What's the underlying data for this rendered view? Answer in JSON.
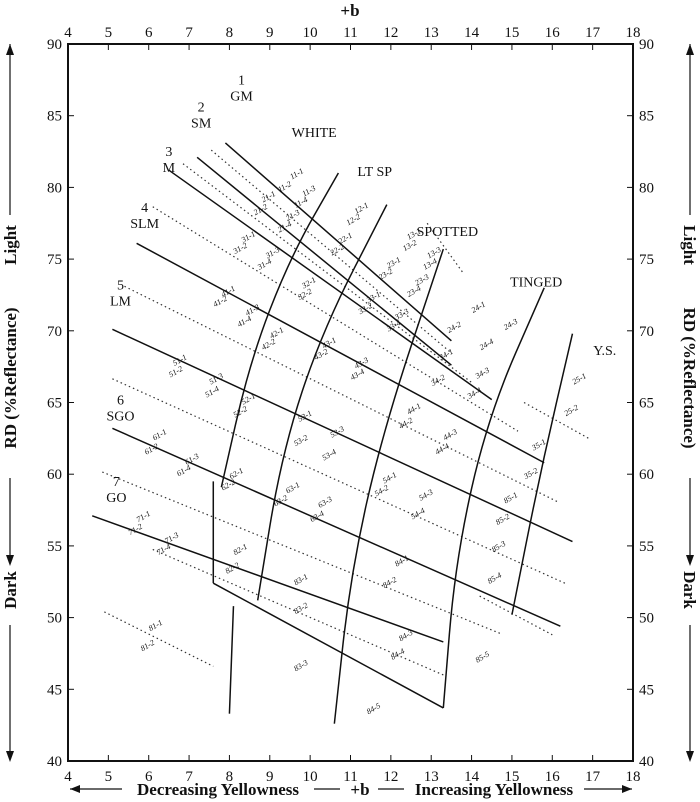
{
  "chart_data": {
    "type": "diagram",
    "axis_titles": {
      "top": "+b",
      "bottom_left": "Decreasing Yellowness",
      "bottom_center": "+b",
      "bottom_right": "Increasing Yellowness",
      "left_center": "RD (%Reflectance)",
      "left_top": "Light",
      "left_bottom": "Dark",
      "right_center": "RD (%Reflectance)",
      "right_top": "Light",
      "right_bottom": "Dark"
    },
    "x_ticks": [
      "4",
      "5",
      "6",
      "7",
      "8",
      "9",
      "10",
      "11",
      "12",
      "13",
      "14",
      "15",
      "16",
      "17",
      "18"
    ],
    "y_ticks": [
      "40",
      "45",
      "50",
      "55",
      "60",
      "65",
      "70",
      "75",
      "80",
      "85",
      "90"
    ],
    "xlim": [
      4,
      18
    ],
    "ylim": [
      40,
      90
    ],
    "grade_labels": [
      {
        "num": "1",
        "abbr": "GM",
        "x": 8.3,
        "y": 86.2
      },
      {
        "num": "2",
        "abbr": "SM",
        "x": 7.3,
        "y": 84.3
      },
      {
        "num": "3",
        "abbr": "M",
        "x": 6.5,
        "y": 81.2
      },
      {
        "num": "4",
        "abbr": "SLM",
        "x": 5.9,
        "y": 77.3
      },
      {
        "num": "5",
        "abbr": "LM",
        "x": 5.3,
        "y": 71.9
      },
      {
        "num": "6",
        "abbr": "SGO",
        "x": 5.3,
        "y": 63.9
      },
      {
        "num": "7",
        "abbr": "GO",
        "x": 5.2,
        "y": 58.2
      }
    ],
    "color_labels": [
      {
        "text": "WHITE",
        "x": 10.1,
        "y": 83.5
      },
      {
        "text": "LT SP",
        "x": 11.6,
        "y": 80.8
      },
      {
        "text": "SPOTTED",
        "x": 13.4,
        "y": 76.6
      },
      {
        "text": "TINGED",
        "x": 15.6,
        "y": 73.1
      },
      {
        "text": "Y.S.",
        "x": 17.3,
        "y": 68.3
      }
    ],
    "grade_boundaries": [
      {
        "name": "GM-SM",
        "points": [
          [
            7.9,
            83.1
          ],
          [
            13.5,
            69.3
          ]
        ]
      },
      {
        "name": "SM-M",
        "points": [
          [
            7.2,
            82.1
          ],
          [
            13.5,
            67.6
          ]
        ]
      },
      {
        "name": "M-SLM",
        "points": [
          [
            6.5,
            81.2
          ],
          [
            14.5,
            65.2
          ]
        ]
      },
      {
        "name": "SLM-LM",
        "points": [
          [
            5.7,
            76.1
          ],
          [
            15.8,
            60.8
          ]
        ]
      },
      {
        "name": "LM-SGO",
        "points": [
          [
            5.1,
            70.1
          ],
          [
            16.5,
            55.3
          ]
        ]
      },
      {
        "name": "SGO-GO",
        "points": [
          [
            5.1,
            63.2
          ],
          [
            16.2,
            49.4
          ]
        ]
      },
      {
        "name": "GO-below",
        "points": [
          [
            4.6,
            57.1
          ],
          [
            13.3,
            48.3
          ]
        ]
      },
      {
        "name": "bottom",
        "points": [
          [
            7.6,
            52.4
          ],
          [
            13.3,
            43.7
          ]
        ]
      }
    ],
    "color_boundaries": [
      {
        "name": "WHITE-LT SP",
        "points": [
          [
            7.8,
            59.1
          ],
          [
            8.5,
            67.8
          ],
          [
            9.5,
            75.1
          ],
          [
            10.7,
            81.0
          ]
        ]
      },
      {
        "name": "LT SP-SPOTTED",
        "points": [
          [
            8.7,
            51.2
          ],
          [
            9.3,
            61.5
          ],
          [
            10.3,
            70.0
          ],
          [
            11.9,
            78.8
          ]
        ]
      },
      {
        "name": "SPOTTED-TINGED",
        "points": [
          [
            10.6,
            42.6
          ],
          [
            11.0,
            53.0
          ],
          [
            11.8,
            63.0
          ],
          [
            13.3,
            75.7
          ]
        ]
      },
      {
        "name": "TINGED-Y.S.",
        "points": [
          [
            13.3,
            43.7
          ],
          [
            13.6,
            54.0
          ],
          [
            14.4,
            64.0
          ],
          [
            15.8,
            73.0
          ]
        ]
      },
      {
        "name": "Y.S.-outer",
        "points": [
          [
            15.0,
            50.2
          ],
          [
            15.7,
            60.1
          ],
          [
            16.5,
            69.8
          ]
        ]
      },
      {
        "name": "GM-left-a",
        "points": [
          [
            7.6,
            52.4
          ],
          [
            7.6,
            59.5
          ]
        ]
      },
      {
        "name": "GO-left-a",
        "points": [
          [
            8.0,
            43.3
          ],
          [
            8.1,
            50.8
          ]
        ]
      }
    ],
    "grade_codes": [
      {
        "code": "11-1",
        "x": 9.7,
        "y": 80.8
      },
      {
        "code": "11-2",
        "x": 9.4,
        "y": 79.9
      },
      {
        "code": "11-3",
        "x": 10.0,
        "y": 79.6
      },
      {
        "code": "11-4",
        "x": 9.8,
        "y": 78.8
      },
      {
        "code": "21-1",
        "x": 9.0,
        "y": 79.2
      },
      {
        "code": "21-2",
        "x": 8.8,
        "y": 78.3
      },
      {
        "code": "21-3",
        "x": 9.6,
        "y": 77.9
      },
      {
        "code": "21-4",
        "x": 9.4,
        "y": 77.1
      },
      {
        "code": "31-1",
        "x": 8.5,
        "y": 76.4
      },
      {
        "code": "31-2",
        "x": 8.3,
        "y": 75.6
      },
      {
        "code": "31-3",
        "x": 9.1,
        "y": 75.3
      },
      {
        "code": "31-4",
        "x": 8.9,
        "y": 74.5
      },
      {
        "code": "41-1",
        "x": 8.0,
        "y": 72.6
      },
      {
        "code": "41-2",
        "x": 7.8,
        "y": 71.9
      },
      {
        "code": "41-3",
        "x": 8.6,
        "y": 71.3
      },
      {
        "code": "41-4",
        "x": 8.4,
        "y": 70.5
      },
      {
        "code": "51-1",
        "x": 6.8,
        "y": 67.8
      },
      {
        "code": "51-2",
        "x": 6.7,
        "y": 67.0
      },
      {
        "code": "51-3",
        "x": 7.7,
        "y": 66.5
      },
      {
        "code": "51-4",
        "x": 7.6,
        "y": 65.6
      },
      {
        "code": "61-1",
        "x": 6.3,
        "y": 62.6
      },
      {
        "code": "61-2",
        "x": 6.1,
        "y": 61.6
      },
      {
        "code": "61-3",
        "x": 7.1,
        "y": 60.9
      },
      {
        "code": "61-4",
        "x": 6.9,
        "y": 60.1
      },
      {
        "code": "71-1",
        "x": 5.9,
        "y": 56.9
      },
      {
        "code": "71-2",
        "x": 5.7,
        "y": 56.0
      },
      {
        "code": "71-3",
        "x": 6.6,
        "y": 55.4
      },
      {
        "code": "71-4",
        "x": 6.4,
        "y": 54.6
      },
      {
        "code": "81-1",
        "x": 6.2,
        "y": 49.3
      },
      {
        "code": "81-2",
        "x": 6.0,
        "y": 47.9
      },
      {
        "code": "12-1",
        "x": 11.3,
        "y": 78.4
      },
      {
        "code": "12-2",
        "x": 11.1,
        "y": 77.6
      },
      {
        "code": "22-1",
        "x": 10.9,
        "y": 76.3
      },
      {
        "code": "22-2",
        "x": 10.7,
        "y": 75.5
      },
      {
        "code": "32-1",
        "x": 10.0,
        "y": 73.2
      },
      {
        "code": "32-2",
        "x": 9.9,
        "y": 72.4
      },
      {
        "code": "42-1",
        "x": 9.2,
        "y": 69.7
      },
      {
        "code": "42-2",
        "x": 9.0,
        "y": 68.9
      },
      {
        "code": "52-1",
        "x": 8.5,
        "y": 65.1
      },
      {
        "code": "52-2",
        "x": 8.3,
        "y": 64.2
      },
      {
        "code": "62-1",
        "x": 8.2,
        "y": 59.9
      },
      {
        "code": "62-2",
        "x": 8.0,
        "y": 59.1
      },
      {
        "code": "82-1",
        "x": 8.3,
        "y": 54.6
      },
      {
        "code": "82-2",
        "x": 8.1,
        "y": 53.3
      },
      {
        "code": "13-1",
        "x": 12.6,
        "y": 76.6
      },
      {
        "code": "13-2",
        "x": 12.5,
        "y": 75.8
      },
      {
        "code": "13-3",
        "x": 13.1,
        "y": 75.3
      },
      {
        "code": "13-4",
        "x": 13.0,
        "y": 74.5
      },
      {
        "code": "23-1",
        "x": 12.1,
        "y": 74.6
      },
      {
        "code": "23-2",
        "x": 11.9,
        "y": 73.8
      },
      {
        "code": "23-3",
        "x": 12.8,
        "y": 73.4
      },
      {
        "code": "23-4",
        "x": 12.6,
        "y": 72.6
      },
      {
        "code": "33-1",
        "x": 11.6,
        "y": 72.2
      },
      {
        "code": "33-2",
        "x": 11.4,
        "y": 71.4
      },
      {
        "code": "33-3",
        "x": 12.3,
        "y": 71.0
      },
      {
        "code": "33-4",
        "x": 12.1,
        "y": 70.2
      },
      {
        "code": "43-1",
        "x": 10.5,
        "y": 69.0
      },
      {
        "code": "43-2",
        "x": 10.3,
        "y": 68.2
      },
      {
        "code": "43-3",
        "x": 11.3,
        "y": 67.6
      },
      {
        "code": "43-4",
        "x": 11.2,
        "y": 66.8
      },
      {
        "code": "53-1",
        "x": 9.9,
        "y": 63.9
      },
      {
        "code": "53-2",
        "x": 9.8,
        "y": 62.2
      },
      {
        "code": "53-3",
        "x": 10.7,
        "y": 62.8
      },
      {
        "code": "53-4",
        "x": 10.5,
        "y": 61.2
      },
      {
        "code": "63-1",
        "x": 9.6,
        "y": 58.9
      },
      {
        "code": "63-2",
        "x": 9.3,
        "y": 58.0
      },
      {
        "code": "63-3",
        "x": 10.4,
        "y": 57.9
      },
      {
        "code": "63-4",
        "x": 10.2,
        "y": 56.9
      },
      {
        "code": "83-1",
        "x": 9.8,
        "y": 52.5
      },
      {
        "code": "83-2",
        "x": 9.8,
        "y": 50.5
      },
      {
        "code": "83-3",
        "x": 9.8,
        "y": 46.5
      },
      {
        "code": "24-1",
        "x": 14.2,
        "y": 71.5
      },
      {
        "code": "24-2",
        "x": 13.6,
        "y": 70.1
      },
      {
        "code": "24-3",
        "x": 15.0,
        "y": 70.3
      },
      {
        "code": "24-4",
        "x": 14.4,
        "y": 68.9
      },
      {
        "code": "34-1",
        "x": 13.4,
        "y": 68.2
      },
      {
        "code": "34-2",
        "x": 13.2,
        "y": 66.4
      },
      {
        "code": "34-3",
        "x": 14.3,
        "y": 66.9
      },
      {
        "code": "34-4",
        "x": 14.1,
        "y": 65.5
      },
      {
        "code": "44-1",
        "x": 12.6,
        "y": 64.4
      },
      {
        "code": "44-2",
        "x": 12.4,
        "y": 63.4
      },
      {
        "code": "44-3",
        "x": 13.5,
        "y": 62.6
      },
      {
        "code": "44-4",
        "x": 13.3,
        "y": 61.6
      },
      {
        "code": "54-1",
        "x": 12.0,
        "y": 59.6
      },
      {
        "code": "54-2",
        "x": 11.8,
        "y": 58.7
      },
      {
        "code": "54-3",
        "x": 12.9,
        "y": 58.4
      },
      {
        "code": "54-4",
        "x": 12.7,
        "y": 57.1
      },
      {
        "code": "84-1",
        "x": 12.3,
        "y": 53.8
      },
      {
        "code": "84-2",
        "x": 12.0,
        "y": 52.3
      },
      {
        "code": "84-3",
        "x": 12.4,
        "y": 48.6
      },
      {
        "code": "84-4",
        "x": 12.2,
        "y": 47.3
      },
      {
        "code": "84-5",
        "x": 11.6,
        "y": 43.5
      },
      {
        "code": "25-1",
        "x": 16.7,
        "y": 66.5
      },
      {
        "code": "25-2",
        "x": 16.5,
        "y": 64.3
      },
      {
        "code": "35-1",
        "x": 15.7,
        "y": 61.9
      },
      {
        "code": "35-2",
        "x": 15.5,
        "y": 59.9
      },
      {
        "code": "85-1",
        "x": 15.0,
        "y": 58.2
      },
      {
        "code": "85-2",
        "x": 14.8,
        "y": 56.7
      },
      {
        "code": "85-3",
        "x": 14.7,
        "y": 54.8
      },
      {
        "code": "85-4",
        "x": 14.6,
        "y": 52.6
      },
      {
        "code": "85-5",
        "x": 14.3,
        "y": 47.1
      }
    ]
  }
}
